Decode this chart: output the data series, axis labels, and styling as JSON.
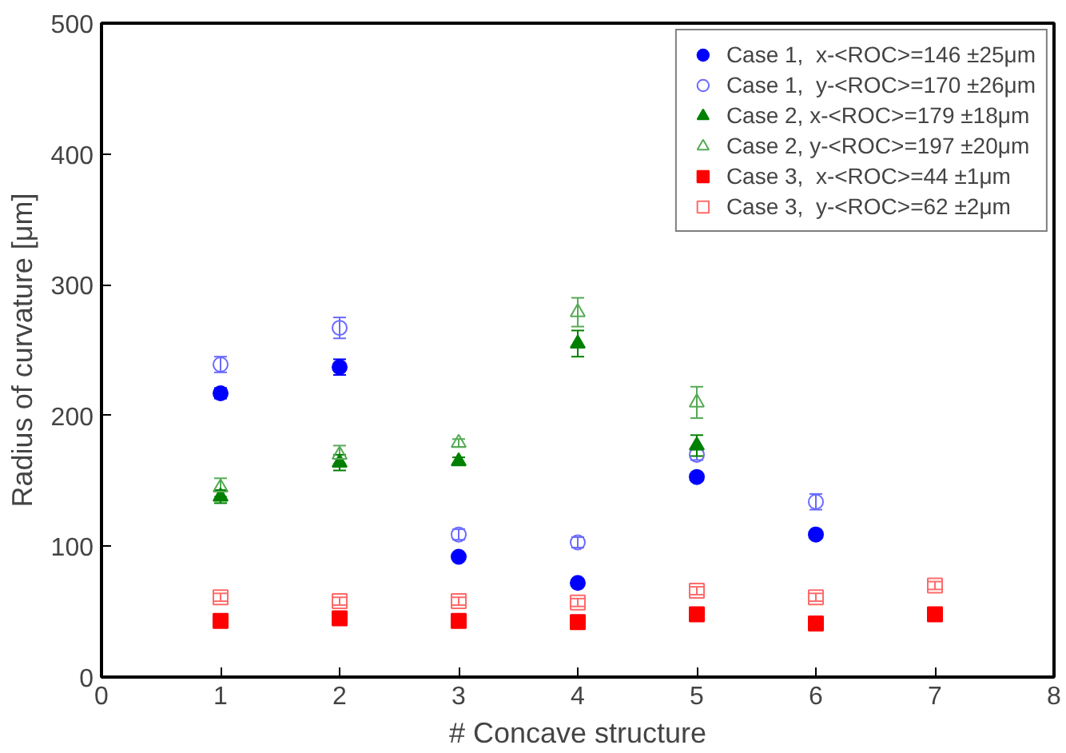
{
  "chart_data": {
    "type": "scatter",
    "xlabel": "# Concave structure",
    "ylabel": "Radius of curvature [μm]",
    "xlim": [
      0,
      8
    ],
    "ylim": [
      0,
      500
    ],
    "xticks": [
      0,
      1,
      2,
      3,
      4,
      5,
      6,
      7,
      8
    ],
    "yticks": [
      0,
      100,
      200,
      300,
      400,
      500
    ],
    "grid": false,
    "legend": "top right",
    "series": [
      {
        "name": "Case 1,  x-<ROC>=146 ±25μm",
        "color": "#0000ff",
        "marker": "circle",
        "x": [
          1,
          2,
          3,
          4,
          5,
          6
        ],
        "values": [
          217,
          237,
          92,
          72,
          153,
          109
        ],
        "errors": [
          4,
          6,
          2,
          2,
          2,
          3
        ]
      },
      {
        "name": "Case 1,  y-<ROC>=170 ±26μm",
        "color": "#6a6aff",
        "marker": "circle",
        "x": [
          1,
          2,
          3,
          4,
          5,
          6
        ],
        "values": [
          239,
          267,
          109,
          103,
          170,
          134
        ],
        "errors": [
          6,
          8,
          4,
          4,
          4,
          6
        ]
      },
      {
        "name": "Case 2, x-<ROC>=179 ±18μm",
        "color": "#008000",
        "marker": "triangle",
        "x": [
          1,
          2,
          3,
          4,
          5
        ],
        "values": [
          138,
          164,
          165,
          255,
          177
        ],
        "errors": [
          5,
          6,
          3,
          10,
          8
        ]
      },
      {
        "name": "Case 2, y-<ROC>=197 ±20μm",
        "color": "#55aa55",
        "marker": "triangle",
        "x": [
          1,
          2,
          3,
          4,
          5
        ],
        "values": [
          145,
          170,
          179,
          279,
          210
        ],
        "errors": [
          7,
          7,
          3,
          11,
          12
        ]
      },
      {
        "name": "Case 3,  x-<ROC>=44 ±1μm",
        "color": "#ff0000",
        "marker": "square",
        "x": [
          1,
          2,
          3,
          4,
          5,
          6,
          7
        ],
        "values": [
          43,
          45,
          43,
          42,
          48,
          41,
          48
        ],
        "errors": [
          2,
          2,
          2,
          2,
          2,
          2,
          2
        ]
      },
      {
        "name": "Case 3,  y-<ROC>=62 ±2μm",
        "color": "#ff6a6a",
        "marker": "square",
        "x": [
          1,
          2,
          3,
          4,
          5,
          6,
          7
        ],
        "values": [
          61,
          58,
          58,
          57,
          66,
          61,
          70
        ],
        "errors": [
          3,
          3,
          3,
          3,
          3,
          3,
          3
        ]
      }
    ]
  }
}
